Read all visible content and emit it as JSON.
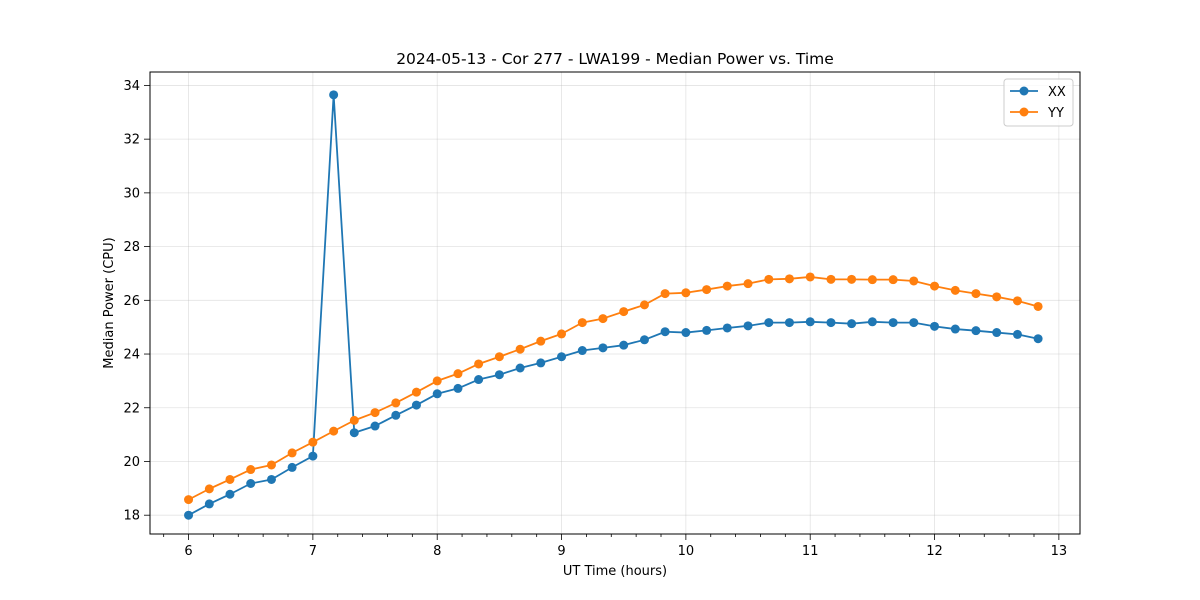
{
  "chart_data": {
    "type": "line",
    "title": "2024-05-13 - Cor 277 - LWA199 - Median Power vs. Time",
    "xlabel": "UT Time (hours)",
    "ylabel": "Median Power (CPU)",
    "xlim": [
      5.69,
      13.17
    ],
    "ylim": [
      17.3,
      34.5
    ],
    "xticks": [
      6,
      7,
      8,
      9,
      10,
      11,
      12,
      13
    ],
    "xtick_labels": [
      "6",
      "7",
      "8",
      "9",
      "10",
      "11",
      "12",
      "13"
    ],
    "yticks": [
      18,
      20,
      22,
      24,
      26,
      28,
      30,
      32,
      34
    ],
    "ytick_labels": [
      "18",
      "20",
      "22",
      "24",
      "26",
      "28",
      "30",
      "32",
      "34"
    ],
    "grid": true,
    "legend_position": "top-right",
    "x": [
      6.0,
      6.167,
      6.333,
      6.5,
      6.667,
      6.833,
      7.0,
      7.167,
      7.333,
      7.5,
      7.667,
      7.833,
      8.0,
      8.167,
      8.333,
      8.5,
      8.667,
      8.833,
      9.0,
      9.167,
      9.333,
      9.5,
      9.667,
      9.833,
      10.0,
      10.167,
      10.333,
      10.5,
      10.667,
      10.833,
      11.0,
      11.167,
      11.333,
      11.5,
      11.667,
      11.833,
      12.0,
      12.167,
      12.333,
      12.5,
      12.667,
      12.833
    ],
    "series": [
      {
        "name": "XX",
        "color": "#1f77b4",
        "values": [
          18.0,
          18.42,
          18.78,
          19.18,
          19.33,
          19.78,
          20.2,
          33.65,
          21.07,
          21.32,
          21.72,
          22.1,
          22.52,
          22.72,
          23.05,
          23.23,
          23.48,
          23.67,
          23.9,
          24.13,
          24.23,
          24.33,
          24.53,
          24.83,
          24.8,
          24.88,
          24.97,
          25.05,
          25.17,
          25.17,
          25.2,
          25.17,
          25.13,
          25.2,
          25.17,
          25.17,
          25.03,
          24.93,
          24.87,
          24.8,
          24.73,
          24.57
        ]
      },
      {
        "name": "YY",
        "color": "#ff7f0e",
        "values": [
          18.58,
          18.98,
          19.33,
          19.7,
          19.87,
          20.32,
          20.72,
          21.13,
          21.53,
          21.82,
          22.18,
          22.58,
          23.0,
          23.27,
          23.63,
          23.9,
          24.18,
          24.48,
          24.75,
          25.17,
          25.32,
          25.58,
          25.83,
          26.25,
          26.28,
          26.4,
          26.53,
          26.62,
          26.78,
          26.8,
          26.87,
          26.78,
          26.78,
          26.77,
          26.77,
          26.72,
          26.53,
          26.37,
          26.25,
          26.13,
          25.98,
          25.77
        ]
      }
    ]
  }
}
